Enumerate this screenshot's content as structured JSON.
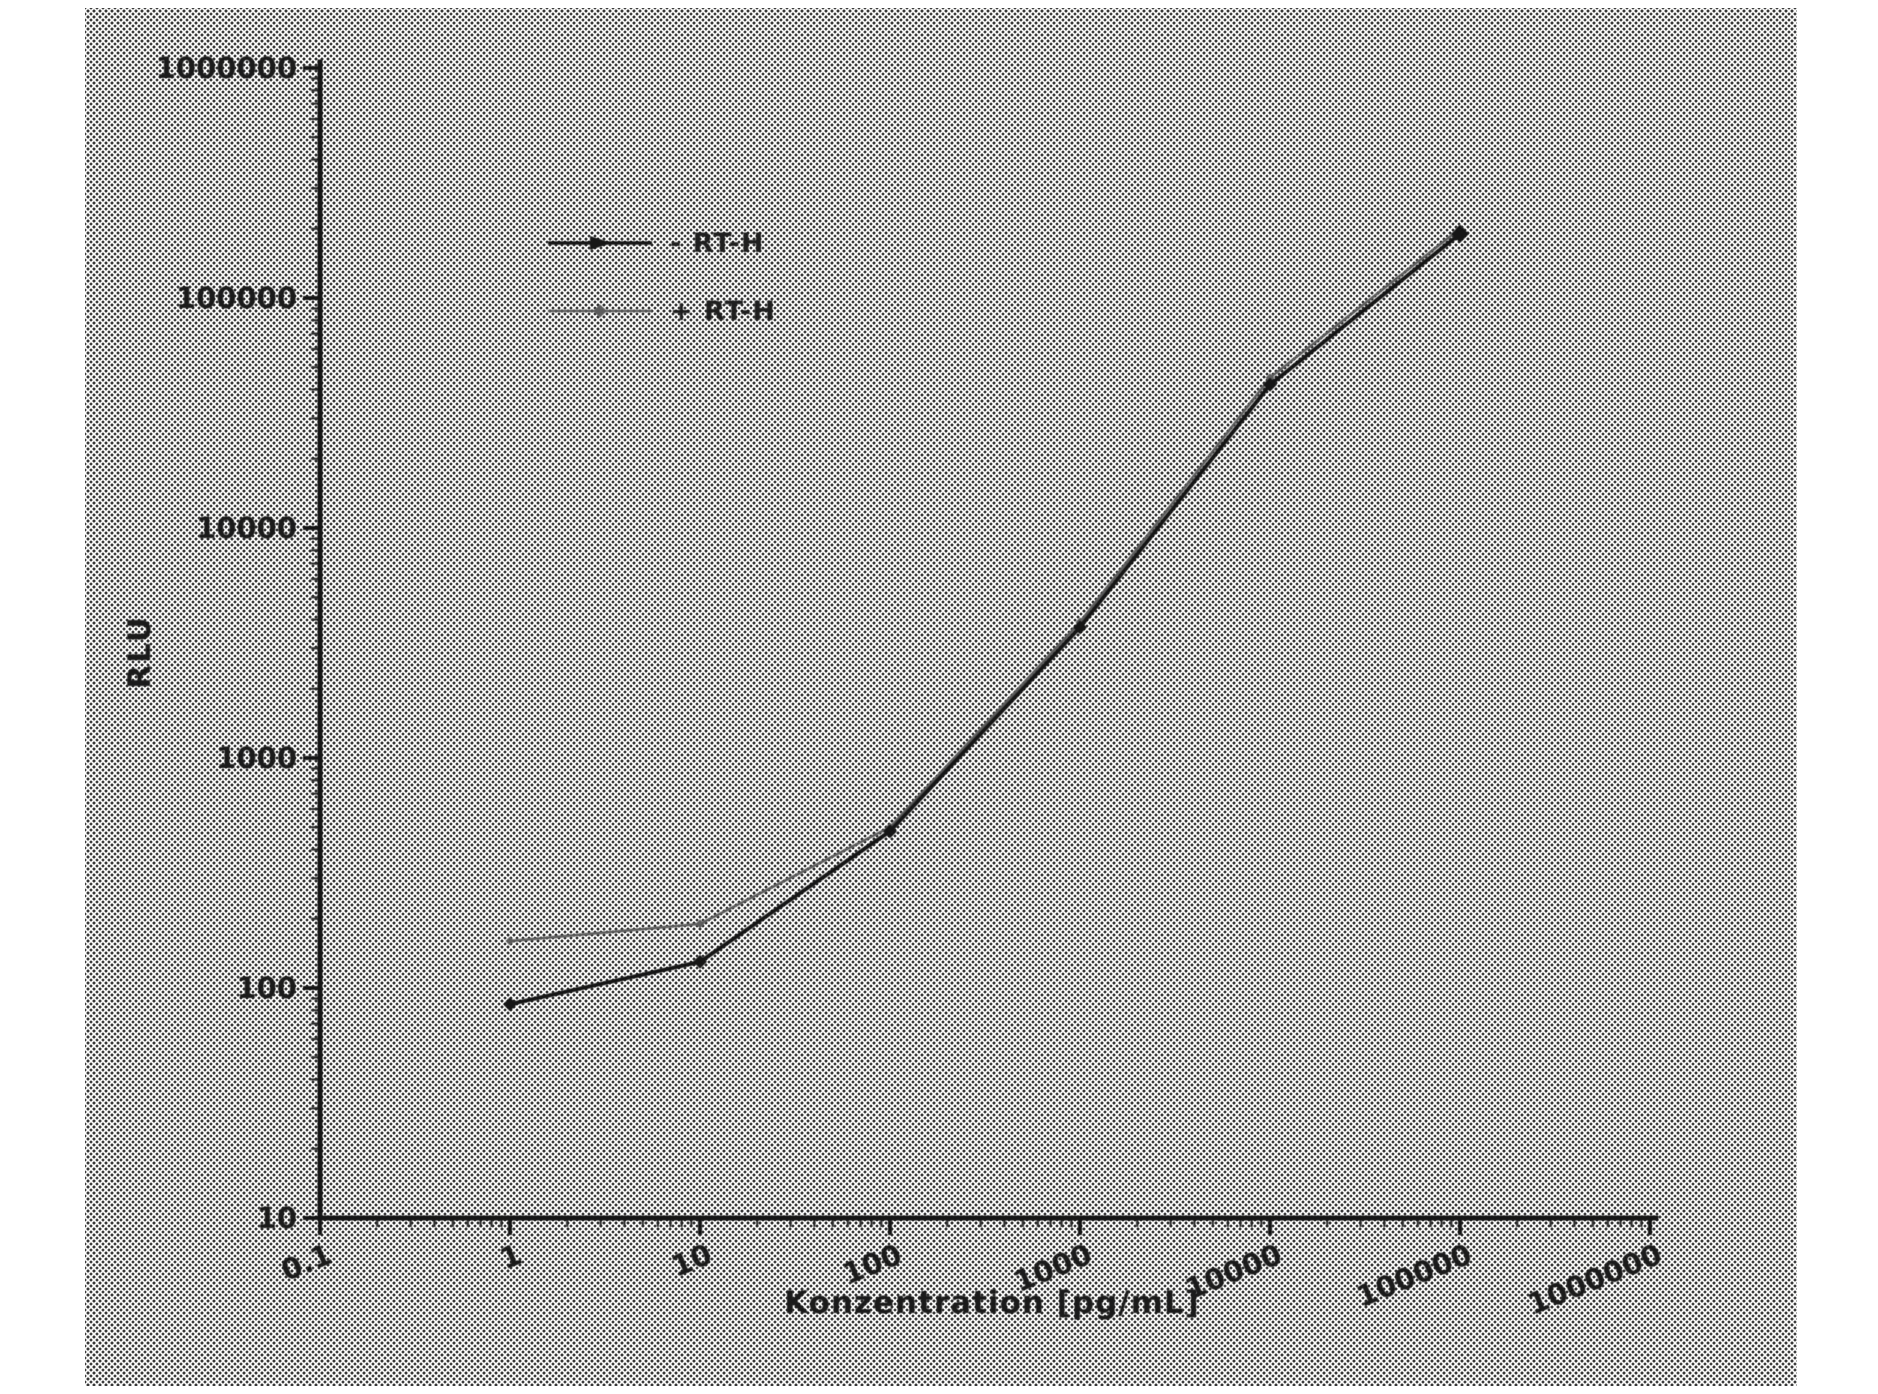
{
  "figure": {
    "kind": "scanned patent line chart"
  },
  "chart_data": {
    "type": "line",
    "title": "",
    "xlabel": "Konzentration [pg/mL]",
    "ylabel": "RLU",
    "xscale": "log",
    "yscale": "log",
    "xlim": [
      0.1,
      1000000
    ],
    "ylim": [
      10,
      1000000
    ],
    "grid": false,
    "legend_position": "upper-left-inside",
    "x_tick_labels": [
      "0.1",
      "1",
      "10",
      "100",
      "1000",
      "10000",
      "100000",
      "1000000"
    ],
    "y_tick_labels": [
      "10",
      "100",
      "1000",
      "10000",
      "100000",
      "1000000"
    ],
    "x": [
      1,
      10,
      100,
      1000,
      10000,
      100000
    ],
    "series": [
      {
        "name": "- RT-H",
        "color": "#161616",
        "marker": "filled-diamond",
        "values": [
          85,
          130,
          480,
          3700,
          42000,
          190000
        ]
      },
      {
        "name": "+ RT-H",
        "color": "#5c5c5c",
        "marker": "small-filled-diamond",
        "values": [
          160,
          190,
          500,
          3900,
          45000,
          200000
        ]
      }
    ]
  }
}
